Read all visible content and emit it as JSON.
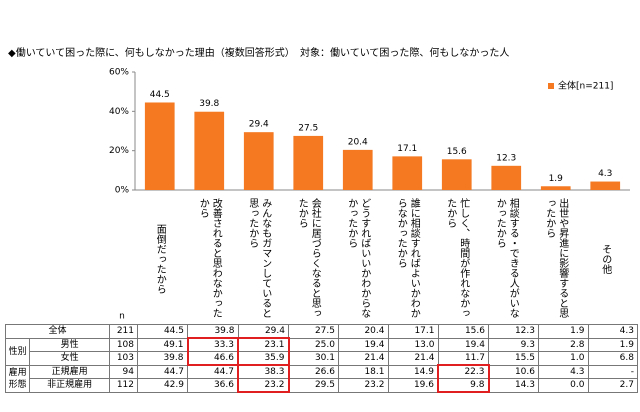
{
  "title": "◆働いていて困った際に、何もしなかった理由（複数回答形式）",
  "subtitle": "対象：働いていて困った際、何もしなかった人",
  "chart_data": {
    "type": "bar",
    "categories": [
      "面倒だったから",
      "改善されると思わなかったから",
      "みんなもガマンしていると思ったから",
      "会社に居づらくなると思ったから",
      "どうすればいいかわからなかったから",
      "誰に相談すればよいかわからなかったから",
      "忙しく、時間が作れなかったから",
      "相談する・できる人がいなかったから",
      "出世や昇進に影響すると思ったから",
      "その他"
    ],
    "series": [
      {
        "name": "全体[n=211]",
        "color": "#f47920",
        "values": [
          44.5,
          39.8,
          29.4,
          27.5,
          20.4,
          17.1,
          15.6,
          12.3,
          1.9,
          4.3
        ]
      }
    ],
    "ylim": [
      0,
      60
    ],
    "yticks": [
      {
        "value": 0,
        "label": "0%"
      },
      {
        "value": 20,
        "label": "20%"
      },
      {
        "value": 40,
        "label": "40%"
      },
      {
        "value": 60,
        "label": "60%"
      }
    ],
    "grid": false
  },
  "table": {
    "n_header": "n",
    "rows": [
      {
        "label": "全体",
        "n": "211",
        "values": [
          "44.5",
          "39.8",
          "29.4",
          "27.5",
          "20.4",
          "17.1",
          "15.6",
          "12.3",
          "1.9",
          "4.3"
        ]
      },
      {
        "group": "性別",
        "label": "男性",
        "n": "108",
        "values": [
          "49.1",
          "33.3",
          "23.1",
          "25.0",
          "19.4",
          "13.0",
          "19.4",
          "9.3",
          "2.8",
          "1.9"
        ]
      },
      {
        "label": "女性",
        "n": "103",
        "values": [
          "39.8",
          "46.6",
          "35.9",
          "30.1",
          "21.4",
          "21.4",
          "11.7",
          "15.5",
          "1.0",
          "6.8"
        ]
      },
      {
        "group": "雇用形態",
        "label": "正規雇用",
        "n": "94",
        "values": [
          "44.7",
          "44.7",
          "38.3",
          "26.6",
          "18.1",
          "14.9",
          "22.3",
          "10.6",
          "4.3",
          "-"
        ]
      },
      {
        "label": "非正規雇用",
        "n": "112",
        "values": [
          "42.9",
          "36.6",
          "23.2",
          "29.5",
          "23.2",
          "19.6",
          "9.8",
          "14.3",
          "0.0",
          "2.7"
        ]
      }
    ]
  }
}
